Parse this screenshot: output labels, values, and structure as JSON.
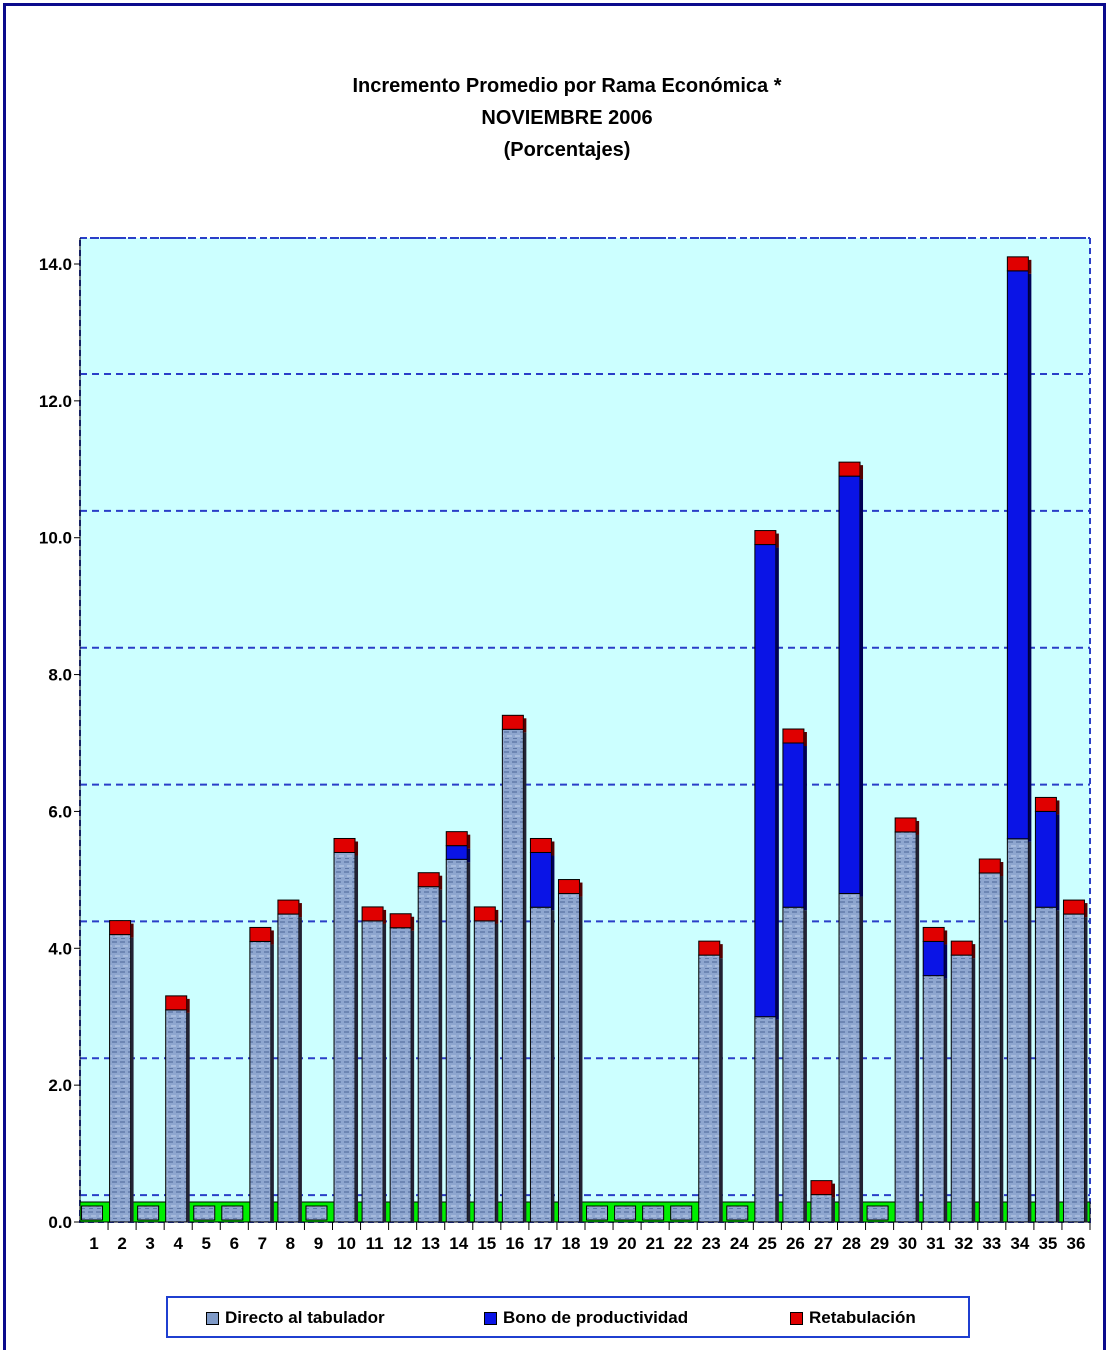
{
  "chart_data": {
    "type": "bar",
    "stacked": true,
    "title": "Incremento Promedio por Rama Económica *",
    "subtitle": "NOVIEMBRE 2006",
    "unit": "(Porcentajes)",
    "categories": [
      "1",
      "2",
      "3",
      "4",
      "5",
      "6",
      "7",
      "8",
      "9",
      "10",
      "11",
      "12",
      "13",
      "14",
      "15",
      "16",
      "17",
      "18",
      "19",
      "20",
      "21",
      "22",
      "23",
      "24",
      "25",
      "26",
      "27",
      "28",
      "29",
      "30",
      "31",
      "32",
      "33",
      "34",
      "35",
      "36"
    ],
    "series": [
      {
        "name": "Directo al tabulador",
        "color": "#7f9ac7",
        "values": [
          0,
          4.2,
          0,
          3.1,
          0,
          0,
          4.1,
          4.5,
          0,
          5.4,
          4.4,
          4.3,
          4.9,
          5.3,
          4.4,
          7.2,
          4.6,
          4.8,
          0,
          0,
          0,
          0,
          3.9,
          0,
          3.0,
          4.6,
          0.4,
          4.8,
          0,
          5.7,
          3.6,
          3.9,
          5.1,
          5.6,
          4.6,
          4.5
        ]
      },
      {
        "name": "Bono de productividad",
        "color": "#0a14e6",
        "values": [
          0,
          0,
          0,
          0,
          0,
          0,
          0,
          0,
          0,
          0,
          0,
          0,
          0,
          0.2,
          0,
          0,
          0.8,
          0,
          0,
          0,
          0,
          0,
          0,
          0,
          6.9,
          2.4,
          0,
          6.1,
          0,
          0,
          0.5,
          0,
          0,
          8.3,
          1.4,
          0
        ]
      },
      {
        "name": "Retabulación",
        "color": "#e00000",
        "values": [
          0,
          0.2,
          0,
          0.2,
          0,
          0,
          0.2,
          0.2,
          0,
          0.2,
          0.2,
          0.2,
          0.2,
          0.2,
          0.2,
          0.2,
          0.2,
          0.2,
          0,
          0,
          0,
          0,
          0.2,
          0,
          0.2,
          0.2,
          0.2,
          0.2,
          0,
          0.2,
          0.2,
          0.2,
          0.2,
          0.2,
          0.2,
          0.2
        ]
      }
    ],
    "y_ticks": [
      "0.0",
      "2.0",
      "4.0",
      "6.0",
      "8.0",
      "10.0",
      "12.0",
      "14.0"
    ],
    "ylim": [
      0,
      14
    ],
    "grid": true,
    "legend_position": "bottom"
  }
}
